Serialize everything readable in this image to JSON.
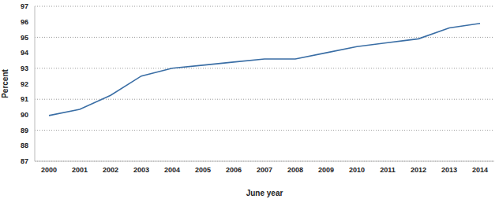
{
  "chart_data": {
    "type": "line",
    "x_label": "June year",
    "y_label": "Percent",
    "categories": [
      "2000",
      "2001",
      "2002",
      "2003",
      "2004",
      "2005",
      "2006",
      "2007",
      "2008",
      "2009",
      "2010",
      "2011",
      "2012",
      "2013",
      "2014"
    ],
    "values": [
      89.95,
      90.35,
      91.25,
      92.5,
      93.0,
      93.2,
      93.4,
      93.6,
      93.6,
      94.0,
      94.4,
      94.65,
      94.9,
      95.6,
      95.9
    ],
    "color": "#3a6ea5",
    "ylim": [
      87,
      97
    ],
    "yticks": [
      87,
      88,
      89,
      90,
      91,
      92,
      93,
      94,
      95,
      96,
      97
    ],
    "grid": true
  }
}
